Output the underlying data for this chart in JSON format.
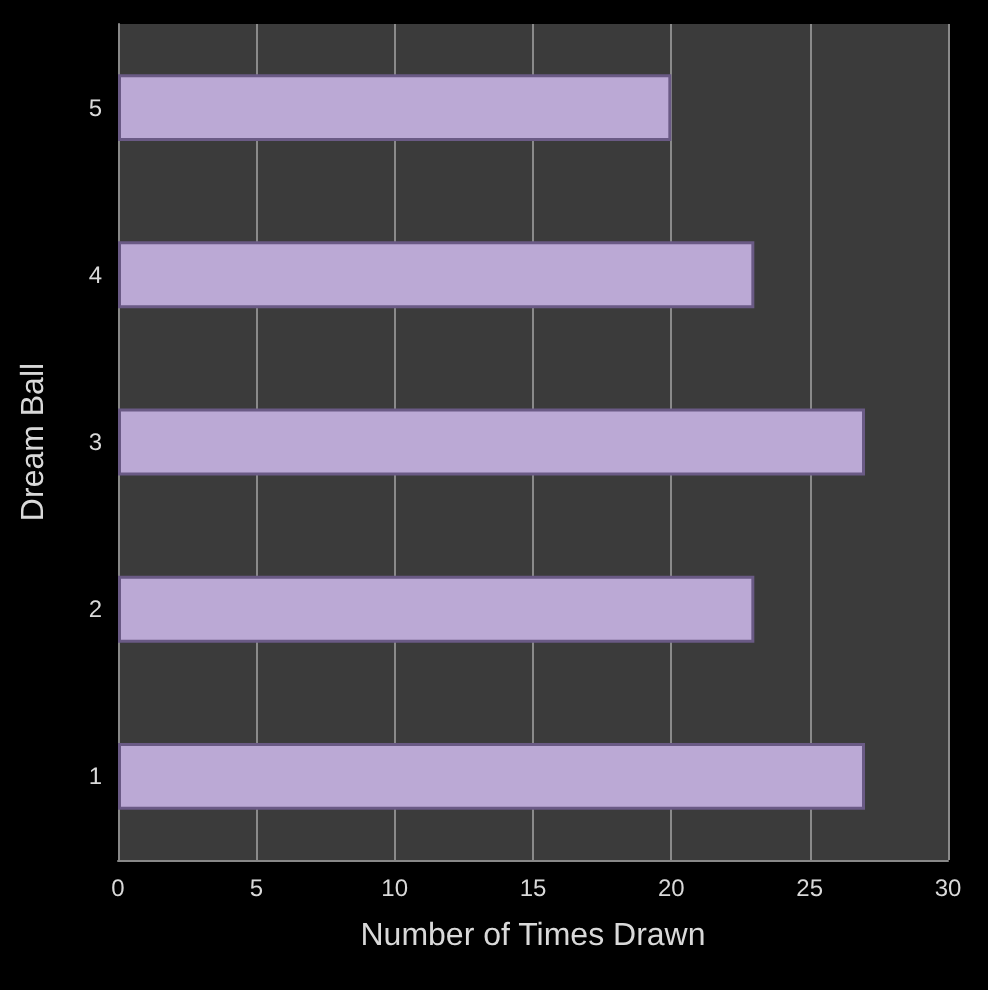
{
  "chart_data": {
    "type": "bar",
    "orientation": "horizontal",
    "xlabel": "Number of Times Drawn",
    "ylabel": "Dream Ball",
    "categories": [
      "5",
      "4",
      "3",
      "2",
      "1"
    ],
    "series": [
      {
        "color": "#bba9d5",
        "values": [
          20,
          23,
          27,
          23,
          27
        ]
      }
    ],
    "xlim": [
      0,
      30
    ],
    "xticks": [
      0,
      5,
      10,
      15,
      20,
      25,
      30
    ],
    "grid": "x"
  }
}
